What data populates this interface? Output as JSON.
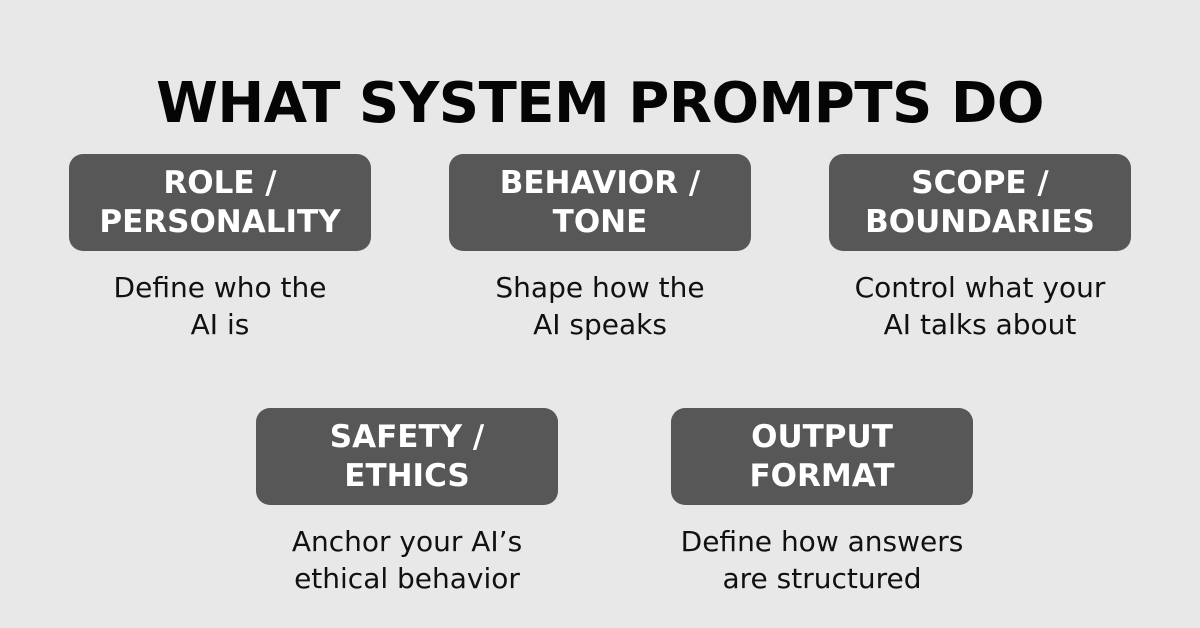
{
  "title": "WHAT SYSTEM PROMPTS DO",
  "cards": [
    {
      "heading": "ROLE /\nPERSONALITY",
      "description": "Define who the\nAI is"
    },
    {
      "heading": "BEHAVIOR /\nTONE",
      "description": "Shape how the\nAI speaks"
    },
    {
      "heading": "SCOPE /\nBOUNDARIES",
      "description": "Control what your\nAI talks about"
    },
    {
      "heading": "SAFETY /\nETHICS",
      "description": "Anchor your AI’s\nethical behavior"
    },
    {
      "heading": "OUTPUT\nFORMAT",
      "description": "Define how answers\nare structured"
    }
  ],
  "colors": {
    "background": "#e8e8e8",
    "card": "#575757",
    "card_text": "#ffffff",
    "text": "#111111"
  }
}
